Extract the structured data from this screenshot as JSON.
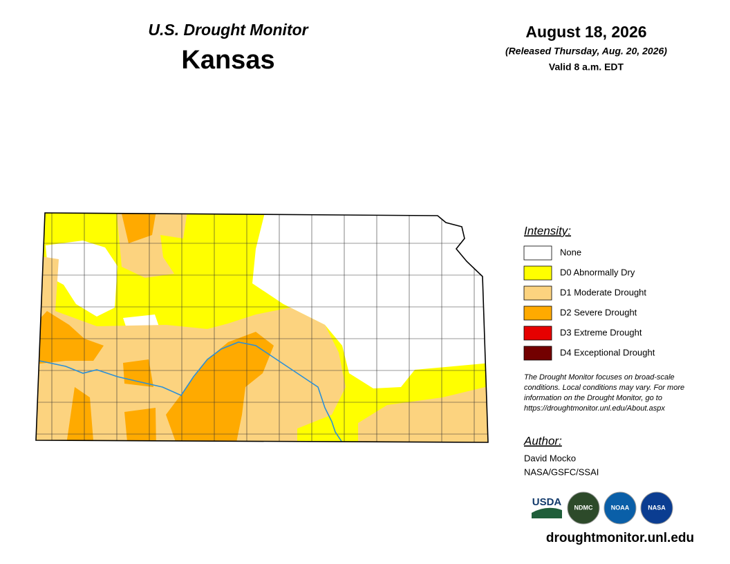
{
  "header": {
    "title": "U.S. Drought Monitor",
    "state": "Kansas",
    "date": "August 18, 2026",
    "released": "(Released Thursday, Aug. 20, 2026)",
    "valid": "Valid 8 a.m. EDT"
  },
  "legend": {
    "title": "Intensity:",
    "items": [
      {
        "label": "None",
        "color": "#ffffff"
      },
      {
        "label": "D0 Abnormally Dry",
        "color": "#ffff00"
      },
      {
        "label": "D1 Moderate Drought",
        "color": "#fcd37f"
      },
      {
        "label": "D2 Severe Drought",
        "color": "#ffaa00"
      },
      {
        "label": "D3 Extreme Drought",
        "color": "#e60000"
      },
      {
        "label": "D4 Exceptional Drought",
        "color": "#730000"
      }
    ]
  },
  "note": [
    "The Drought Monitor focuses on broad-scale",
    "conditions. Local conditions may vary. For more",
    "information on the Drought Monitor, go to",
    "https://droughtmonitor.unl.edu/About.aspx"
  ],
  "author": {
    "title": "Author:",
    "name": "David Mocko",
    "org": "NASA/GSFC/SSAI"
  },
  "logos": [
    "USDA",
    "NDMC",
    "NOAA",
    "NASA"
  ],
  "url": "droughtmonitor.unl.edu"
}
